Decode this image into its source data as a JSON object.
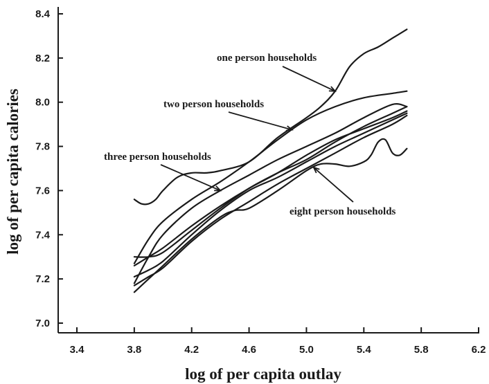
{
  "chart_data": {
    "type": "line",
    "title": "",
    "xlabel": "log of per capita outlay",
    "ylabel": "log of per capita calories",
    "xlim": [
      3.4,
      6.2
    ],
    "ylim": [
      7.0,
      8.4
    ],
    "xticks": [
      "3.4",
      "3.8",
      "4.2",
      "4.6",
      "5.0",
      "5.4",
      "5.8",
      "6.2"
    ],
    "yticks": [
      "7.0",
      "7.2",
      "7.4",
      "7.6",
      "7.8",
      "8.0",
      "8.2",
      "8.4"
    ],
    "grid": false,
    "legend": "none",
    "series": [
      {
        "name": "one person households",
        "x": [
          3.8,
          3.85,
          3.9,
          3.95,
          4.0,
          4.1,
          4.2,
          4.3,
          4.4,
          4.6,
          4.8,
          5.0,
          5.1,
          5.2,
          5.3,
          5.4,
          5.5,
          5.6,
          5.7
        ],
        "y": [
          7.56,
          7.54,
          7.54,
          7.56,
          7.6,
          7.66,
          7.68,
          7.68,
          7.69,
          7.73,
          7.84,
          7.93,
          7.98,
          8.05,
          8.16,
          8.22,
          8.25,
          8.29,
          8.33
        ]
      },
      {
        "name": "two person households",
        "x": [
          3.8,
          3.9,
          4.0,
          4.2,
          4.4,
          4.6,
          4.8,
          5.0,
          5.2,
          5.4,
          5.6,
          5.7
        ],
        "y": [
          7.27,
          7.38,
          7.46,
          7.56,
          7.64,
          7.73,
          7.83,
          7.92,
          7.98,
          8.02,
          8.04,
          8.05
        ]
      },
      {
        "name": "three person households",
        "x": [
          3.8,
          3.9,
          4.0,
          4.2,
          4.4,
          4.6,
          4.8,
          5.0,
          5.2,
          5.4,
          5.6,
          5.7
        ],
        "y": [
          7.18,
          7.3,
          7.4,
          7.52,
          7.6,
          7.67,
          7.74,
          7.8,
          7.86,
          7.93,
          7.99,
          7.98
        ]
      },
      {
        "name": "",
        "x": [
          3.8,
          3.9,
          4.0,
          4.2,
          4.4,
          4.6,
          4.8,
          5.0,
          5.2,
          5.4,
          5.6,
          5.7
        ],
        "y": [
          7.3,
          7.3,
          7.32,
          7.42,
          7.52,
          7.61,
          7.68,
          7.74,
          7.82,
          7.89,
          7.95,
          7.98
        ]
      },
      {
        "name": "",
        "x": [
          3.8,
          3.9,
          4.0,
          4.2,
          4.4,
          4.6,
          4.8,
          5.0,
          5.2,
          5.4,
          5.6,
          5.7
        ],
        "y": [
          7.26,
          7.3,
          7.34,
          7.44,
          7.53,
          7.61,
          7.68,
          7.76,
          7.83,
          7.88,
          7.93,
          7.96
        ]
      },
      {
        "name": "",
        "x": [
          3.8,
          3.9,
          4.0,
          4.2,
          4.4,
          4.6,
          4.8,
          5.0,
          5.2,
          5.4,
          5.6,
          5.7
        ],
        "y": [
          7.21,
          7.24,
          7.28,
          7.4,
          7.51,
          7.6,
          7.66,
          7.73,
          7.8,
          7.86,
          7.92,
          7.95
        ]
      },
      {
        "name": "",
        "x": [
          3.8,
          3.9,
          4.0,
          4.2,
          4.4,
          4.6,
          4.8,
          5.0,
          5.2,
          5.4,
          5.6,
          5.7
        ],
        "y": [
          7.17,
          7.21,
          7.25,
          7.37,
          7.47,
          7.55,
          7.63,
          7.7,
          7.77,
          7.84,
          7.9,
          7.94
        ]
      },
      {
        "name": "eight person households",
        "x": [
          3.8,
          3.9,
          4.0,
          4.2,
          4.4,
          4.5,
          4.6,
          4.8,
          5.0,
          5.1,
          5.2,
          5.3,
          5.4,
          5.45,
          5.5,
          5.55,
          5.6,
          5.65,
          5.7
        ],
        "y": [
          7.14,
          7.2,
          7.26,
          7.38,
          7.48,
          7.51,
          7.52,
          7.6,
          7.69,
          7.72,
          7.72,
          7.71,
          7.73,
          7.76,
          7.82,
          7.83,
          7.77,
          7.76,
          7.79
        ]
      }
    ],
    "annotations": [
      {
        "text": "one person households",
        "series": 0,
        "point_x": 5.2
      },
      {
        "text": "two person households",
        "series": 1,
        "point_x": 4.9
      },
      {
        "text": "three person households",
        "series": 2,
        "point_x": 4.4
      },
      {
        "text": "eight person households",
        "series": 7,
        "point_x": 5.05
      }
    ]
  }
}
